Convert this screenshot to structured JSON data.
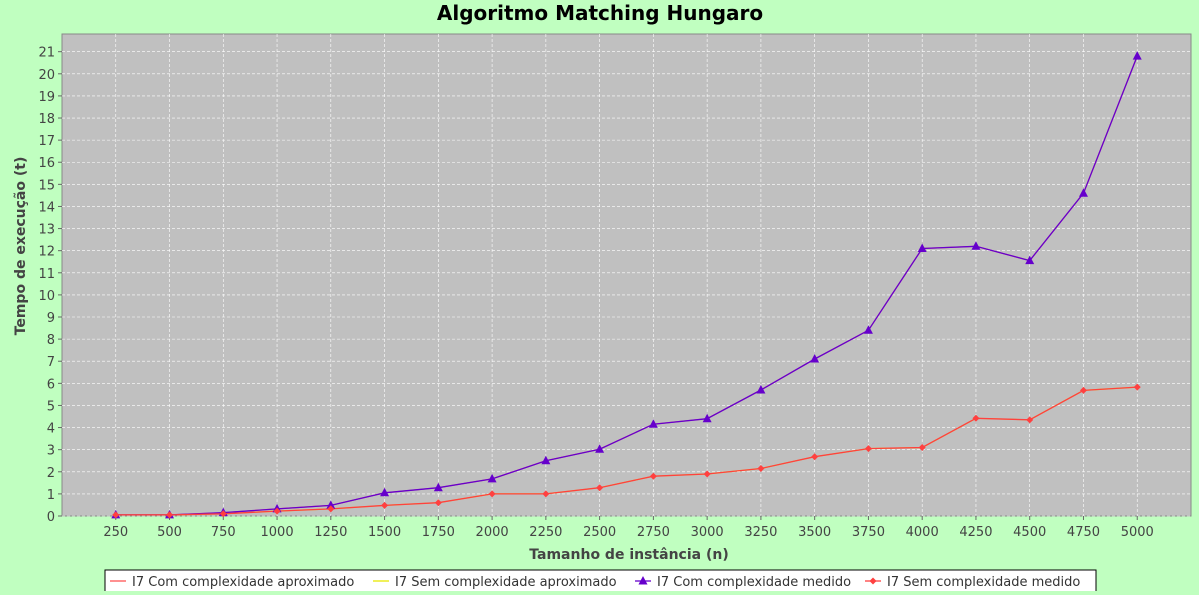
{
  "chart_data": {
    "type": "line",
    "title": "Algoritmo Matching Hungaro",
    "xlabel": "Tamanho de instância (n)",
    "ylabel": "Tempo de execução (t)",
    "x": [
      250,
      500,
      750,
      1000,
      1250,
      1500,
      1750,
      2000,
      2250,
      2500,
      2750,
      3000,
      3250,
      3500,
      3750,
      4000,
      4250,
      4500,
      4750,
      5000
    ],
    "xlim": [
      0,
      5250
    ],
    "ylim": [
      0,
      21.8
    ],
    "yticks": [
      0,
      1,
      2,
      3,
      4,
      5,
      6,
      7,
      8,
      9,
      10,
      11,
      12,
      13,
      14,
      15,
      16,
      17,
      18,
      19,
      20,
      21
    ],
    "grid": true,
    "legend_position": "bottom",
    "background_color": "#c0c0c0",
    "page_color": "#c0ffc0",
    "series": [
      {
        "name": "I7 Com complexidade aproximado",
        "color": "#ff5555",
        "marker": "none",
        "values": [
          0.05,
          0.05,
          0.15,
          0.32,
          0.48,
          1.05,
          1.28,
          1.68,
          2.5,
          3.02,
          4.15,
          4.4,
          5.7,
          7.1,
          8.4,
          12.1,
          12.2,
          11.55,
          14.6,
          20.8
        ]
      },
      {
        "name": "I7 Sem complexidade aproximado",
        "color": "#e8e800",
        "marker": "none",
        "values": [
          0.05,
          0.05,
          0.1,
          0.22,
          0.32,
          0.48,
          0.6,
          1.0,
          1.0,
          1.28,
          1.8,
          1.9,
          2.15,
          2.68,
          3.05,
          3.1,
          4.42,
          4.35,
          5.68,
          5.83
        ]
      },
      {
        "name": "I7 Com complexidade medido",
        "color": "#6600cc",
        "marker": "triangle",
        "values": [
          0.05,
          0.05,
          0.15,
          0.32,
          0.48,
          1.05,
          1.28,
          1.68,
          2.5,
          3.02,
          4.15,
          4.4,
          5.7,
          7.1,
          8.4,
          12.1,
          12.2,
          11.55,
          14.6,
          20.8
        ]
      },
      {
        "name": "I7 Sem complexidade medido",
        "color": "#ff4040",
        "marker": "diamond",
        "values": [
          0.05,
          0.05,
          0.1,
          0.22,
          0.32,
          0.48,
          0.6,
          1.0,
          1.0,
          1.28,
          1.8,
          1.9,
          2.15,
          2.68,
          3.05,
          3.1,
          4.42,
          4.35,
          5.68,
          5.83
        ]
      }
    ]
  }
}
